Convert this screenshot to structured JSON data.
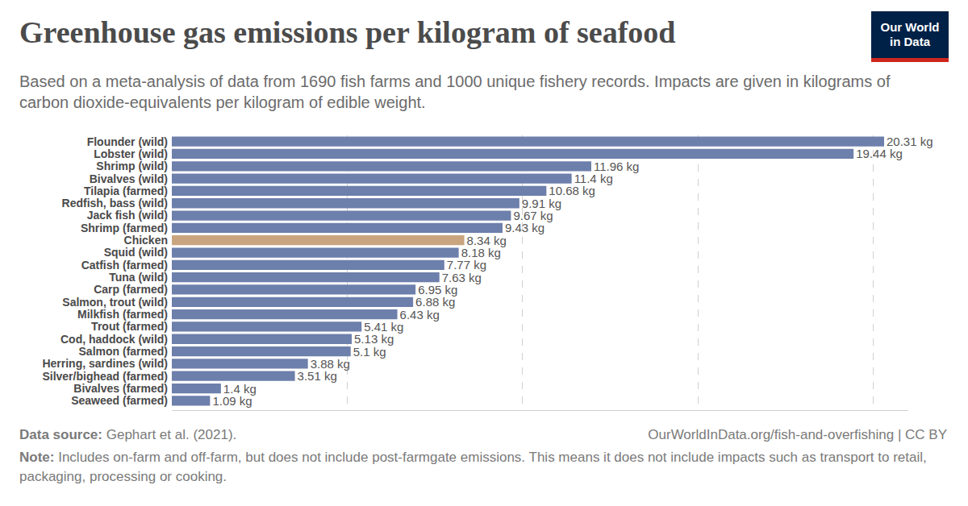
{
  "chart_data": {
    "type": "bar",
    "title": "Greenhouse gas emissions per kilogram of seafood",
    "subtitle": "Based on a meta-analysis of data from 1690 fish farms and 1000 unique fishery records. Impacts are given in kilograms of carbon dioxide-equivalents per kilogram of edible weight.",
    "orientation": "horizontal",
    "categories": [
      "Flounder (wild)",
      "Lobster (wild)",
      "Shrimp (wild)",
      "Bivalves (wild)",
      "Tilapia (farmed)",
      "Redfish, bass (wild)",
      "Jack fish (wild)",
      "Shrimp (farmed)",
      "Chicken",
      "Squid (wild)",
      "Catfish (farmed)",
      "Tuna (wild)",
      "Carp (farmed)",
      "Salmon, trout (wild)",
      "Milkfish (farmed)",
      "Trout (farmed)",
      "Cod, haddock (wild)",
      "Salmon (farmed)",
      "Herring, sardines (wild)",
      "Silver/bighead (farmed)",
      "Bivalves (farmed)",
      "Seaweed (farmed)"
    ],
    "values": [
      20.31,
      19.44,
      11.96,
      11.4,
      10.68,
      9.91,
      9.67,
      9.43,
      8.34,
      8.18,
      7.77,
      7.63,
      6.95,
      6.88,
      6.43,
      5.41,
      5.13,
      5.1,
      3.88,
      3.51,
      1.4,
      1.09
    ],
    "value_labels": [
      "20.31 kg",
      "19.44 kg",
      "11.96 kg",
      "11.4 kg",
      "10.68 kg",
      "9.91 kg",
      "9.67 kg",
      "9.43 kg",
      "8.34 kg",
      "8.18 kg",
      "7.77 kg",
      "7.63 kg",
      "6.95 kg",
      "6.88 kg",
      "6.43 kg",
      "5.41 kg",
      "5.13 kg",
      "5.1 kg",
      "3.88 kg",
      "3.51 kg",
      "1.4 kg",
      "1.09 kg"
    ],
    "colors": [
      "#6d7fab",
      "#6d7fab",
      "#6d7fab",
      "#6d7fab",
      "#6d7fab",
      "#6d7fab",
      "#6d7fab",
      "#6d7fab",
      "#c9a57f",
      "#6d7fab",
      "#6d7fab",
      "#6d7fab",
      "#6d7fab",
      "#6d7fab",
      "#6d7fab",
      "#6d7fab",
      "#6d7fab",
      "#6d7fab",
      "#6d7fab",
      "#6d7fab",
      "#6d7fab",
      "#6d7fab"
    ],
    "xlim": [
      0,
      21
    ],
    "xticks": [
      0,
      5,
      10,
      15,
      20
    ],
    "grid": true,
    "data_labels": true,
    "tick_labels": "y"
  },
  "logo": [
    "Our World",
    "in Data"
  ],
  "footer": {
    "source_label": "Data source:",
    "source": "Gephart et al. (2021).",
    "url": "OurWorldInData.org/fish-and-overfishing | CC BY",
    "note_label": "Note:",
    "note": "Includes on-farm and off-farm, but does not include post-farmgate emissions. This means it does not include impacts such as transport to retail, packaging, processing or cooking."
  }
}
